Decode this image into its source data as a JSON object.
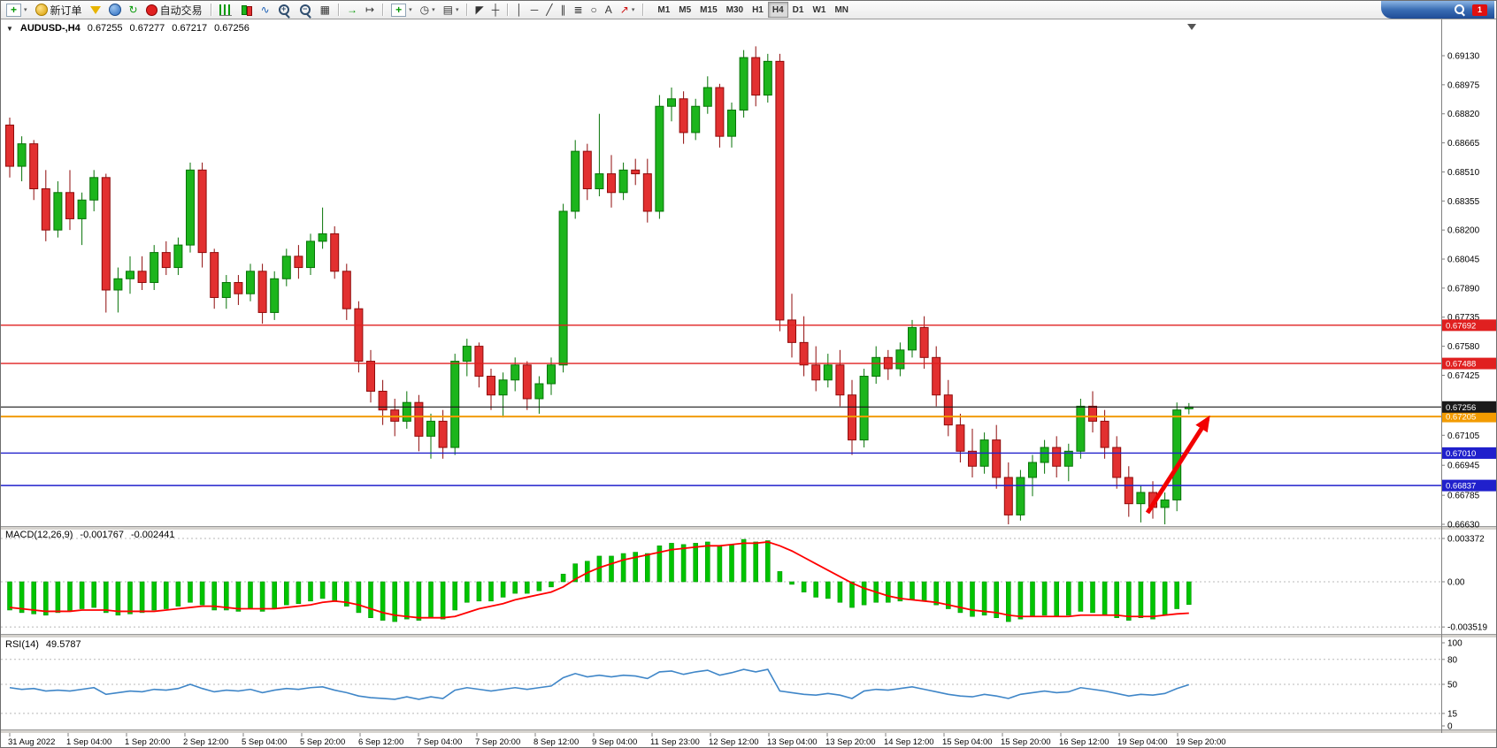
{
  "glyphs": {
    "one_click": "▼",
    "refresh": "↻",
    "tile_windows": "▦",
    "line_chart": "∿",
    "auto_scroll": "→",
    "chart_shift": "↦",
    "clock": "◷",
    "template": "▤",
    "cursor": "◤",
    "crosshair": "┼",
    "vertical_line": "│",
    "horizontal_line": "─",
    "trendline": "╱",
    "channel": "∥",
    "fibonacci": "≣",
    "ellipse": "○",
    "text_tool": "A",
    "arrow_tool": "↗",
    "caret": "▾",
    "zoom_plus": "+",
    "zoom_minus": "−",
    "chart_plus": "+"
  },
  "toolbar": {
    "new_order_label": "新订单",
    "auto_trading_label": "自动交易",
    "timeframes": [
      "M1",
      "M5",
      "M15",
      "M30",
      "H1",
      "H4",
      "D1",
      "W1",
      "MN"
    ],
    "active_timeframe": "H4",
    "notification_count": "1"
  },
  "symbol_header": {
    "expander": "▼",
    "symbol": "AUDUSD-,H4",
    "open": "0.67255",
    "high": "0.67277",
    "low": "0.67217",
    "close": "0.67256"
  },
  "price_axis": {
    "labels": [
      "0.69130",
      "0.68975",
      "0.68820",
      "0.68665",
      "0.68510",
      "0.68355",
      "0.68200",
      "0.68045",
      "0.67890",
      "0.67735",
      "0.67580",
      "0.67425",
      "0.67105",
      "0.66945",
      "0.66785",
      "0.66630"
    ]
  },
  "chart_data": {
    "type": "candlestick",
    "title": "AUDUSD-,H4",
    "symbol": "AUDUSD",
    "timeframe": "H4",
    "price_range": [
      0.6663,
      0.6913
    ],
    "style": {
      "background": "#ffffff",
      "up_fill": "#1cb51c",
      "up_border": "#077307",
      "down_fill": "#e23030",
      "down_border": "#8f0b0b",
      "axis_text": "#000000"
    },
    "levels": [
      {
        "price": 0.67692,
        "label": "0.67692",
        "color": "#e02020",
        "width": 1.4
      },
      {
        "price": 0.67488,
        "label": "0.67488",
        "color": "#e02020",
        "width": 1.4
      },
      {
        "price": 0.67205,
        "label": "0.67205",
        "color": "#f29b00",
        "width": 2
      },
      {
        "price": 0.67256,
        "label": "0.67256",
        "color": "#1a1a1a",
        "width": 1.2
      },
      {
        "price": 0.6701,
        "label": "0.67010",
        "color": "#2020cc",
        "width": 1.4
      },
      {
        "price": 0.66837,
        "label": "0.66837",
        "color": "#2020cc",
        "width": 1.4
      }
    ],
    "annotations": {
      "arrow": {
        "color": "#f20000",
        "direction": "up-right"
      }
    },
    "time_labels": [
      "31 Aug 2022",
      "1 Sep 04:00",
      "1 Sep 20:00",
      "2 Sep 12:00",
      "5 Sep 04:00",
      "5 Sep 20:00",
      "6 Sep 12:00",
      "7 Sep 04:00",
      "7 Sep 20:00",
      "8 Sep 12:00",
      "9 Sep 04:00",
      "11 Sep 23:00",
      "12 Sep 12:00",
      "13 Sep 04:00",
      "13 Sep 20:00",
      "14 Sep 12:00",
      "15 Sep 04:00",
      "15 Sep 20:00",
      "16 Sep 12:00",
      "19 Sep 04:00",
      "19 Sep 20:00"
    ],
    "candles": [
      [
        0.6876,
        0.688,
        0.6848,
        0.6854
      ],
      [
        0.6854,
        0.687,
        0.6846,
        0.6866
      ],
      [
        0.6866,
        0.6868,
        0.6836,
        0.6842
      ],
      [
        0.6842,
        0.6852,
        0.6814,
        0.682
      ],
      [
        0.682,
        0.6846,
        0.6816,
        0.684
      ],
      [
        0.684,
        0.6852,
        0.682,
        0.6826
      ],
      [
        0.6826,
        0.684,
        0.6812,
        0.6836
      ],
      [
        0.6836,
        0.6852,
        0.683,
        0.6848
      ],
      [
        0.6848,
        0.685,
        0.6776,
        0.6788
      ],
      [
        0.6788,
        0.68,
        0.6776,
        0.6794
      ],
      [
        0.6794,
        0.6806,
        0.6786,
        0.6798
      ],
      [
        0.6798,
        0.6806,
        0.6788,
        0.6792
      ],
      [
        0.6792,
        0.6812,
        0.6788,
        0.6808
      ],
      [
        0.6808,
        0.6814,
        0.6796,
        0.68
      ],
      [
        0.68,
        0.6816,
        0.6796,
        0.6812
      ],
      [
        0.6812,
        0.6856,
        0.6808,
        0.6852
      ],
      [
        0.6852,
        0.6856,
        0.68,
        0.6808
      ],
      [
        0.6808,
        0.681,
        0.6778,
        0.6784
      ],
      [
        0.6784,
        0.6796,
        0.6778,
        0.6792
      ],
      [
        0.6792,
        0.6796,
        0.678,
        0.6786
      ],
      [
        0.6786,
        0.6802,
        0.6782,
        0.6798
      ],
      [
        0.6798,
        0.6802,
        0.677,
        0.6776
      ],
      [
        0.6776,
        0.6798,
        0.6772,
        0.6794
      ],
      [
        0.6794,
        0.681,
        0.679,
        0.6806
      ],
      [
        0.6806,
        0.6812,
        0.6794,
        0.68
      ],
      [
        0.68,
        0.6818,
        0.6796,
        0.6814
      ],
      [
        0.6814,
        0.6832,
        0.681,
        0.6818
      ],
      [
        0.6818,
        0.6822,
        0.6794,
        0.6798
      ],
      [
        0.6798,
        0.6802,
        0.6772,
        0.6778
      ],
      [
        0.6778,
        0.6782,
        0.6744,
        0.675
      ],
      [
        0.675,
        0.6756,
        0.6728,
        0.6734
      ],
      [
        0.6734,
        0.674,
        0.6716,
        0.6724
      ],
      [
        0.6724,
        0.673,
        0.671,
        0.6718
      ],
      [
        0.6718,
        0.6734,
        0.6714,
        0.6728
      ],
      [
        0.6728,
        0.6732,
        0.6702,
        0.671
      ],
      [
        0.671,
        0.6722,
        0.6698,
        0.6718
      ],
      [
        0.6718,
        0.6724,
        0.6698,
        0.6704
      ],
      [
        0.6704,
        0.6754,
        0.67,
        0.675
      ],
      [
        0.675,
        0.6762,
        0.6742,
        0.6758
      ],
      [
        0.6758,
        0.676,
        0.6736,
        0.6742
      ],
      [
        0.6742,
        0.6746,
        0.6724,
        0.6732
      ],
      [
        0.6732,
        0.6744,
        0.672,
        0.674
      ],
      [
        0.674,
        0.6752,
        0.6734,
        0.6748
      ],
      [
        0.6748,
        0.675,
        0.6724,
        0.673
      ],
      [
        0.673,
        0.6742,
        0.6722,
        0.6738
      ],
      [
        0.6738,
        0.6752,
        0.6732,
        0.6748
      ],
      [
        0.6748,
        0.6834,
        0.6744,
        0.683
      ],
      [
        0.683,
        0.6868,
        0.6826,
        0.6862
      ],
      [
        0.6862,
        0.6866,
        0.6836,
        0.6842
      ],
      [
        0.6842,
        0.6882,
        0.6838,
        0.685
      ],
      [
        0.685,
        0.686,
        0.6832,
        0.684
      ],
      [
        0.684,
        0.6856,
        0.6836,
        0.6852
      ],
      [
        0.6852,
        0.6858,
        0.6844,
        0.685
      ],
      [
        0.685,
        0.6858,
        0.6824,
        0.683
      ],
      [
        0.683,
        0.6892,
        0.6826,
        0.6886
      ],
      [
        0.6886,
        0.6896,
        0.6878,
        0.689
      ],
      [
        0.689,
        0.6894,
        0.6866,
        0.6872
      ],
      [
        0.6872,
        0.689,
        0.6868,
        0.6886
      ],
      [
        0.6886,
        0.6902,
        0.6882,
        0.6896
      ],
      [
        0.6896,
        0.6898,
        0.6864,
        0.687
      ],
      [
        0.687,
        0.6888,
        0.6864,
        0.6884
      ],
      [
        0.6884,
        0.6916,
        0.688,
        0.6912
      ],
      [
        0.6912,
        0.6918,
        0.6886,
        0.6892
      ],
      [
        0.6892,
        0.6914,
        0.6888,
        0.691
      ],
      [
        0.691,
        0.6914,
        0.6766,
        0.6772
      ],
      [
        0.6772,
        0.6786,
        0.6752,
        0.676
      ],
      [
        0.676,
        0.6774,
        0.6742,
        0.6748
      ],
      [
        0.6748,
        0.6758,
        0.6734,
        0.674
      ],
      [
        0.674,
        0.6754,
        0.6736,
        0.6748
      ],
      [
        0.6748,
        0.6756,
        0.6726,
        0.6732
      ],
      [
        0.6732,
        0.674,
        0.67,
        0.6708
      ],
      [
        0.6708,
        0.6746,
        0.6704,
        0.6742
      ],
      [
        0.6742,
        0.6758,
        0.6738,
        0.6752
      ],
      [
        0.6752,
        0.6756,
        0.674,
        0.6746
      ],
      [
        0.6746,
        0.676,
        0.6742,
        0.6756
      ],
      [
        0.6756,
        0.6772,
        0.6752,
        0.6768
      ],
      [
        0.6768,
        0.6774,
        0.6746,
        0.6752
      ],
      [
        0.6752,
        0.6758,
        0.6726,
        0.6732
      ],
      [
        0.6732,
        0.674,
        0.671,
        0.6716
      ],
      [
        0.6716,
        0.6722,
        0.6696,
        0.6702
      ],
      [
        0.6702,
        0.6714,
        0.6688,
        0.6694
      ],
      [
        0.6694,
        0.6712,
        0.669,
        0.6708
      ],
      [
        0.6708,
        0.6716,
        0.6682,
        0.6688
      ],
      [
        0.6688,
        0.6696,
        0.6663,
        0.6668
      ],
      [
        0.6668,
        0.6692,
        0.6665,
        0.6688
      ],
      [
        0.6688,
        0.67,
        0.6678,
        0.6696
      ],
      [
        0.6696,
        0.6708,
        0.669,
        0.6704
      ],
      [
        0.6704,
        0.671,
        0.6688,
        0.6694
      ],
      [
        0.6694,
        0.6706,
        0.6686,
        0.6702
      ],
      [
        0.6702,
        0.673,
        0.6698,
        0.6726
      ],
      [
        0.6726,
        0.6734,
        0.6712,
        0.6718
      ],
      [
        0.6718,
        0.6724,
        0.6698,
        0.6704
      ],
      [
        0.6704,
        0.671,
        0.6682,
        0.6688
      ],
      [
        0.6688,
        0.6694,
        0.6667,
        0.6674
      ],
      [
        0.6674,
        0.6684,
        0.6664,
        0.668
      ],
      [
        0.668,
        0.6686,
        0.6666,
        0.6672
      ],
      [
        0.6672,
        0.668,
        0.6663,
        0.6676
      ],
      [
        0.6676,
        0.6728,
        0.667,
        0.6724
      ],
      [
        0.67255,
        0.67277,
        0.67217,
        0.67256
      ]
    ],
    "macd": {
      "label": "MACD(12,26,9)",
      "value_main": "-0.001767",
      "value_signal": "-0.002441",
      "histogram_color": "#00c400",
      "signal_color": "#ff0000",
      "axis": [
        {
          "text": "0.003372",
          "value": 0.003372
        },
        {
          "text": "0.00",
          "value": 0
        },
        {
          "text": "-0.003519",
          "value": -0.003519
        }
      ],
      "histogram": [
        -0.0022,
        -0.0024,
        -0.0025,
        -0.0026,
        -0.0024,
        -0.0023,
        -0.0021,
        -0.002,
        -0.0024,
        -0.0026,
        -0.0025,
        -0.0024,
        -0.0022,
        -0.0021,
        -0.0019,
        -0.0016,
        -0.0018,
        -0.0022,
        -0.0022,
        -0.0023,
        -0.0021,
        -0.0023,
        -0.0021,
        -0.0018,
        -0.0017,
        -0.0015,
        -0.0013,
        -0.0015,
        -0.0019,
        -0.0024,
        -0.0028,
        -0.003,
        -0.0031,
        -0.0029,
        -0.003,
        -0.0028,
        -0.0029,
        -0.0022,
        -0.0016,
        -0.0015,
        -0.0015,
        -0.0012,
        -0.0009,
        -0.0009,
        -0.0007,
        -0.0004,
        0.0006,
        0.0014,
        0.0016,
        0.002,
        0.002,
        0.0022,
        0.0023,
        0.0022,
        0.0028,
        0.003,
        0.0029,
        0.003,
        0.0031,
        0.0028,
        0.0029,
        0.0033,
        0.0031,
        0.0032,
        0.0008,
        -0.0002,
        -0.0008,
        -0.0012,
        -0.0013,
        -0.0016,
        -0.002,
        -0.0018,
        -0.0016,
        -0.0016,
        -0.0015,
        -0.0014,
        -0.0015,
        -0.0018,
        -0.0021,
        -0.0024,
        -0.0027,
        -0.0026,
        -0.0028,
        -0.0031,
        -0.0029,
        -0.0027,
        -0.0026,
        -0.0027,
        -0.0026,
        -0.0023,
        -0.0024,
        -0.0026,
        -0.0028,
        -0.003,
        -0.0028,
        -0.0029,
        -0.0026,
        -0.0021,
        -0.001767
      ],
      "signal": [
        -0.002,
        -0.0021,
        -0.0022,
        -0.0023,
        -0.0023,
        -0.0023,
        -0.0022,
        -0.0022,
        -0.0022,
        -0.0023,
        -0.0023,
        -0.0023,
        -0.0023,
        -0.0022,
        -0.0021,
        -0.002,
        -0.0019,
        -0.0019,
        -0.002,
        -0.0021,
        -0.0021,
        -0.0021,
        -0.0021,
        -0.002,
        -0.0019,
        -0.0018,
        -0.0016,
        -0.0015,
        -0.0016,
        -0.0018,
        -0.0021,
        -0.0024,
        -0.0026,
        -0.0027,
        -0.0028,
        -0.0028,
        -0.0028,
        -0.0027,
        -0.0024,
        -0.0021,
        -0.0019,
        -0.0017,
        -0.0014,
        -0.0012,
        -0.001,
        -0.0008,
        -0.0004,
        0.0002,
        0.0007,
        0.0011,
        0.0014,
        0.0017,
        0.0019,
        0.0021,
        0.0023,
        0.0025,
        0.0026,
        0.0027,
        0.0028,
        0.0028,
        0.0029,
        0.003,
        0.003,
        0.0031,
        0.0028,
        0.0024,
        0.0019,
        0.0014,
        0.0009,
        0.0004,
        -0.0001,
        -0.0005,
        -0.0008,
        -0.0011,
        -0.0013,
        -0.0014,
        -0.0015,
        -0.0016,
        -0.0018,
        -0.002,
        -0.0022,
        -0.0023,
        -0.0024,
        -0.0026,
        -0.0027,
        -0.0027,
        -0.0027,
        -0.0027,
        -0.0027,
        -0.0026,
        -0.0026,
        -0.0026,
        -0.0026,
        -0.0027,
        -0.0027,
        -0.0027,
        -0.0026,
        -0.0025,
        -0.002441
      ]
    },
    "rsi": {
      "label": "RSI(14)",
      "value_text": "49.5787",
      "line_color": "#3f86c8",
      "levels": [
        80,
        50,
        15
      ],
      "axis": [
        {
          "text": "100",
          "value": 100
        },
        {
          "text": "80",
          "value": 80
        },
        {
          "text": "50",
          "value": 50
        },
        {
          "text": "15",
          "value": 15
        },
        {
          "text": "0",
          "value": 0
        }
      ],
      "values": [
        46,
        44,
        45,
        42,
        43,
        42,
        44,
        46,
        38,
        40,
        42,
        41,
        44,
        43,
        45,
        50,
        45,
        41,
        43,
        42,
        44,
        40,
        43,
        45,
        44,
        46,
        47,
        43,
        40,
        36,
        34,
        33,
        32,
        35,
        32,
        35,
        33,
        43,
        46,
        44,
        42,
        44,
        46,
        44,
        46,
        48,
        58,
        63,
        59,
        61,
        59,
        61,
        60,
        57,
        65,
        66,
        62,
        65,
        67,
        61,
        64,
        68,
        65,
        68,
        42,
        40,
        38,
        37,
        39,
        37,
        33,
        42,
        44,
        43,
        45,
        47,
        44,
        41,
        38,
        36,
        35,
        38,
        36,
        33,
        38,
        40,
        42,
        40,
        41,
        46,
        44,
        42,
        39,
        36,
        38,
        37,
        39,
        45,
        49.58
      ]
    }
  }
}
